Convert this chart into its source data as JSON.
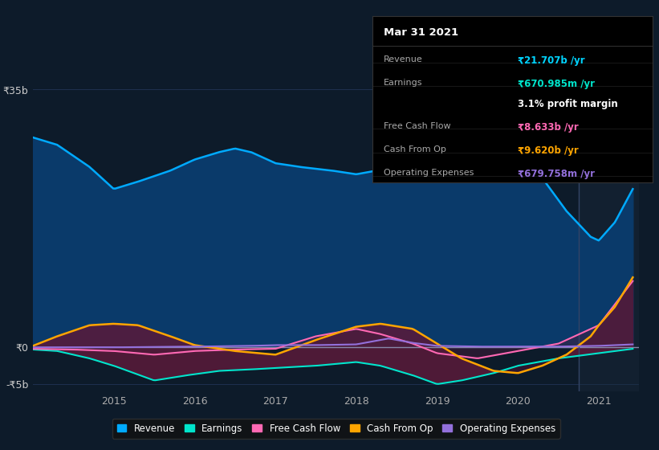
{
  "bg_color": "#0d1b2a",
  "plot_bg_color": "#0d1b2a",
  "title": "Mar 31 2021",
  "table_data": {
    "Revenue": {
      "label": "Revenue",
      "value": "₹21.707b /yr",
      "color": "#00d4ff"
    },
    "Earnings": {
      "label": "Earnings",
      "value": "₹670.985m /yr",
      "color": "#00e5cc"
    },
    "profit_margin": {
      "label": "",
      "value": "3.1% profit margin",
      "color": "#ffffff"
    },
    "Free Cash Flow": {
      "label": "Free Cash Flow",
      "value": "₹8.633b /yr",
      "color": "#ff69b4"
    },
    "Cash From Op": {
      "label": "Cash From Op",
      "value": "₹9.620b /yr",
      "color": "#ffa500"
    },
    "Operating Expenses": {
      "label": "Operating Expenses",
      "value": "₹679.758m /yr",
      "color": "#9370db"
    }
  },
  "ylim": [
    -6,
    38
  ],
  "yticks": [
    -5,
    0,
    35
  ],
  "ytick_labels": [
    "-₹5b",
    "₹0",
    "₹35b"
  ],
  "xlim_start": 2014.0,
  "xlim_end": 2021.5,
  "xticks": [
    2015,
    2016,
    2017,
    2018,
    2019,
    2020,
    2021
  ],
  "grid_color": "#1e3050",
  "revenue_color": "#00aaff",
  "revenue_fill": "#0a3a6a",
  "earnings_color": "#00e5cc",
  "fcf_color": "#ff69b4",
  "cashop_color": "#ffa500",
  "opex_color": "#9370db",
  "legend_bg": "#111111",
  "legend_border": "#333333"
}
